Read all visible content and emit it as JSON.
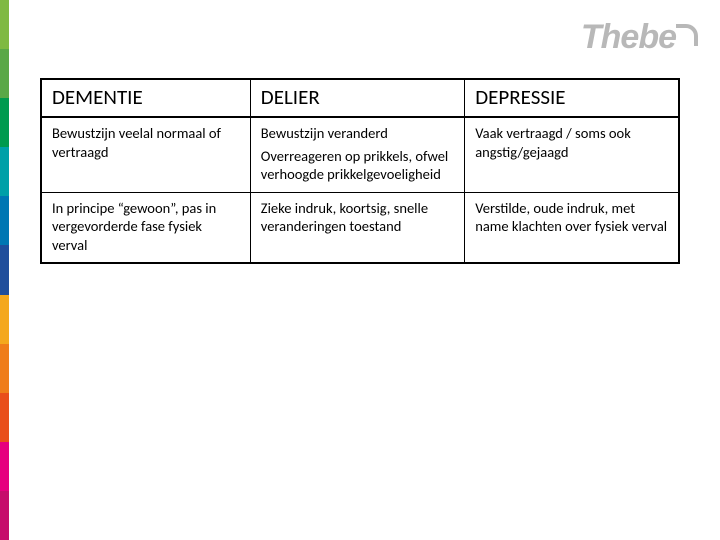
{
  "logo_text": "Thebe",
  "side_stripe_colors": [
    "#7fb942",
    "#5aa847",
    "#009a4e",
    "#00a0a8",
    "#0077b3",
    "#1f4e9c",
    "#f4a81d",
    "#ef7d1a",
    "#e94e1b",
    "#e6007e",
    "#c60c6b"
  ],
  "table": {
    "columns": [
      "DEMENTIE",
      "DELIER",
      "DEPRESSIE"
    ],
    "rows": [
      {
        "c1": "Bewustzijn veelal normaal of vertraagd",
        "c2a": "Bewustzijn veranderd",
        "c2b": "Overreageren op prikkels, ofwel verhoogde prikkelgevoeligheid",
        "c3": "Vaak vertraagd / soms ook angstig/gejaagd"
      },
      {
        "c1": "In principe “gewoon”, pas in vergevorderde fase fysiek verval",
        "c2a": "Zieke indruk, koortsig, snelle veranderingen toestand",
        "c2b": "",
        "c3": "Verstilde, oude indruk, met name klachten over fysiek verval"
      }
    ]
  }
}
